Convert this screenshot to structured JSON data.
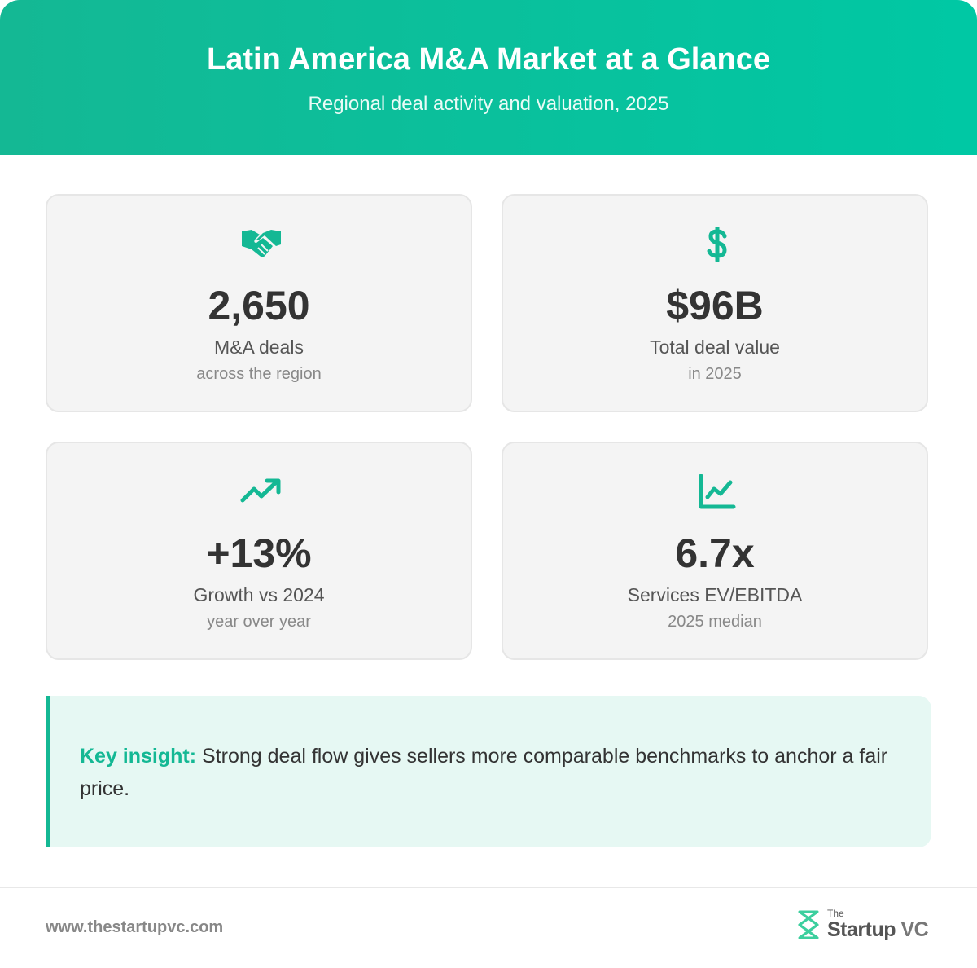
{
  "header": {
    "title": "Latin America M&A Market at a Glance",
    "subtitle": "Regional deal activity and valuation, 2025"
  },
  "cards": [
    {
      "value": "2,650",
      "label": "M&A deals",
      "sublabel": "across the region"
    },
    {
      "value": "$96B",
      "label": "Total deal value",
      "sublabel": "in 2025"
    },
    {
      "value": "+13%",
      "label": "Growth vs 2024",
      "sublabel": "year over year"
    },
    {
      "value": "6.7x",
      "label": "Services EV/EBITDA",
      "sublabel": "2025 median"
    }
  ],
  "insight": {
    "label": "Key insight:",
    "text": "Strong deal flow gives sellers more comparable benchmarks to anchor a fair price."
  },
  "footer": {
    "url": "www.thestartupvc.com",
    "logo_small": "The",
    "logo_main": "Startup",
    "logo_suffix": "VC"
  }
}
